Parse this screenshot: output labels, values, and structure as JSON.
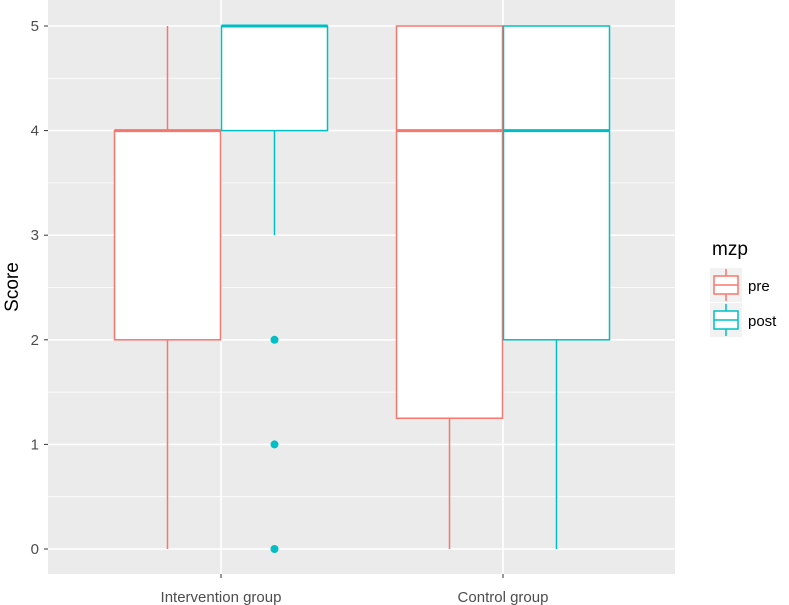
{
  "chart_data": {
    "type": "boxplot",
    "ylabel": "Score",
    "xlabel": "",
    "ylim": [
      -0.25,
      5.1
    ],
    "yticks": [
      0,
      1,
      2,
      3,
      4,
      5
    ],
    "categories": [
      "Intervention group",
      "Control group"
    ],
    "legend": {
      "title": "mzp",
      "position": "right"
    },
    "grid": true,
    "colors": {
      "pre": "#F8766D",
      "post": "#00BFC4",
      "panel": "#EBEBEB",
      "grid": "#FFFFFF"
    },
    "series": [
      {
        "name": "pre",
        "boxes": [
          {
            "category": "Intervention group",
            "min": 0,
            "q1": 2,
            "median": 4,
            "q3": 4,
            "max": 5,
            "outliers": []
          },
          {
            "category": "Control group",
            "min": 0,
            "q1": 1.25,
            "median": 4,
            "q3": 5,
            "max": 5,
            "outliers": []
          }
        ]
      },
      {
        "name": "post",
        "boxes": [
          {
            "category": "Intervention group",
            "min": 3,
            "q1": 4,
            "median": 5,
            "q3": 5,
            "max": 5,
            "outliers": [
              2,
              1,
              0
            ]
          },
          {
            "category": "Control group",
            "min": 0,
            "q1": 2,
            "median": 4,
            "q3": 5,
            "max": 5,
            "outliers": []
          }
        ]
      }
    ]
  }
}
